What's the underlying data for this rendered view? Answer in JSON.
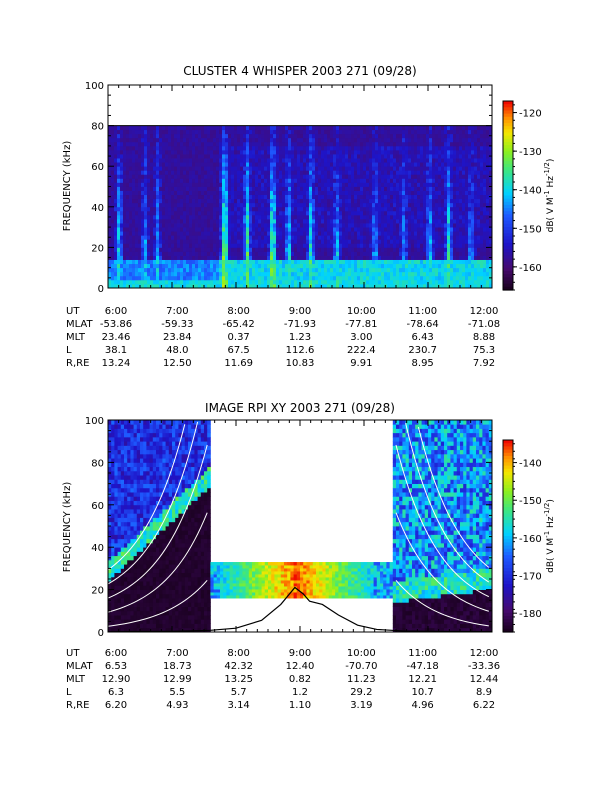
{
  "chart_data": [
    {
      "type": "heatmap",
      "title": "CLUSTER 4 WHISPER 2003 271 (09/28)",
      "ylabel": "FREQUENCY (kHz)",
      "ylim": [
        0,
        100
      ],
      "yticks": [
        "0",
        "20",
        "40",
        "60",
        "80",
        "100"
      ],
      "xticks": [
        "6:00",
        "7:00",
        "8:00",
        "9:00",
        "10:00",
        "11:00",
        "12:00"
      ],
      "data_extent_khz": 80,
      "colorbar": {
        "label": "dB( V M⁻¹ Hz⁻¹ᐟ²)",
        "label_parts": [
          "dB( V M",
          "-1",
          " Hz",
          "-1/2",
          ")"
        ],
        "range": [
          -166,
          -117
        ],
        "ticks": [
          "-120",
          "-130",
          "-140",
          "-150",
          "-160"
        ]
      },
      "ephemeris": {
        "labels": [
          "UT",
          "MLAT",
          "MLT",
          "L",
          "R,RE"
        ],
        "rows": [
          [
            "6:00",
            "7:00",
            "8:00",
            "9:00",
            "10:00",
            "11:00",
            "12:00"
          ],
          [
            "-53.86",
            "-59.33",
            "-65.42",
            "-71.93",
            "-77.81",
            "-78.64",
            "-71.08"
          ],
          [
            "23.46",
            "23.84",
            "0.37",
            "1.23",
            "3.00",
            "6.43",
            "8.88"
          ],
          [
            "38.1",
            "48.0",
            "67.5",
            "112.6",
            "222.4",
            "230.7",
            "75.3"
          ],
          [
            "13.24",
            "12.50",
            "11.69",
            "10.83",
            "9.91",
            "8.95",
            "7.92"
          ]
        ]
      }
    },
    {
      "type": "heatmap",
      "title": "IMAGE RPI XY 2003 271 (09/28)",
      "ylabel": "FREQUENCY (kHz)",
      "ylim": [
        0,
        100
      ],
      "yticks": [
        "0",
        "20",
        "40",
        "60",
        "80",
        "100"
      ],
      "xticks": [
        "6:00",
        "7:00",
        "8:00",
        "9:00",
        "10:00",
        "11:00",
        "12:00"
      ],
      "coverage": [
        {
          "from_ut": 6.0,
          "to_ut": 7.6,
          "fmin": 0,
          "fmax": 100
        },
        {
          "from_ut": 7.6,
          "to_ut": 10.45,
          "fmin": 16,
          "fmax": 33
        },
        {
          "from_ut": 10.45,
          "to_ut": 12.0,
          "fmin": 0,
          "fmax": 100
        }
      ],
      "overlay_curve": {
        "description_label": "",
        "points_ut_khz": [
          [
            6.0,
            0.1
          ],
          [
            7.0,
            0.3
          ],
          [
            7.6,
            0.8
          ],
          [
            8.0,
            1.8
          ],
          [
            8.4,
            5.5
          ],
          [
            8.7,
            13
          ],
          [
            8.92,
            21
          ],
          [
            9.05,
            18
          ],
          [
            9.15,
            14.5
          ],
          [
            9.35,
            13
          ],
          [
            9.6,
            8
          ],
          [
            9.9,
            3.2
          ],
          [
            10.2,
            1.2
          ],
          [
            10.6,
            0.5
          ],
          [
            11.2,
            0.25
          ],
          [
            12.0,
            0.15
          ]
        ]
      },
      "colorbar": {
        "label": "dB( V M⁻¹ Hz⁻¹ᐟ²)",
        "label_parts": [
          "dB( V M",
          "-1",
          " Hz",
          "-1/2",
          ")"
        ],
        "range": [
          -185,
          -134
        ],
        "ticks": [
          "-140",
          "-150",
          "-160",
          "-170",
          "-180"
        ]
      },
      "ephemeris": {
        "labels": [
          "UT",
          "MLAT",
          "MLT",
          "L",
          "R,RE"
        ],
        "rows": [
          [
            "6:00",
            "7:00",
            "8:00",
            "9:00",
            "10:00",
            "11:00",
            "12:00"
          ],
          [
            "6.53",
            "18.73",
            "42.32",
            "12.40",
            "-70.70",
            "-47.18",
            "-33.36"
          ],
          [
            "12.90",
            "12.99",
            "13.25",
            "0.82",
            "11.23",
            "12.21",
            "12.44"
          ],
          [
            "6.3",
            "5.5",
            "5.7",
            "1.2",
            "29.2",
            "10.7",
            "8.9"
          ],
          [
            "6.20",
            "4.93",
            "3.14",
            "1.10",
            "3.19",
            "4.96",
            "6.22"
          ]
        ]
      }
    }
  ]
}
